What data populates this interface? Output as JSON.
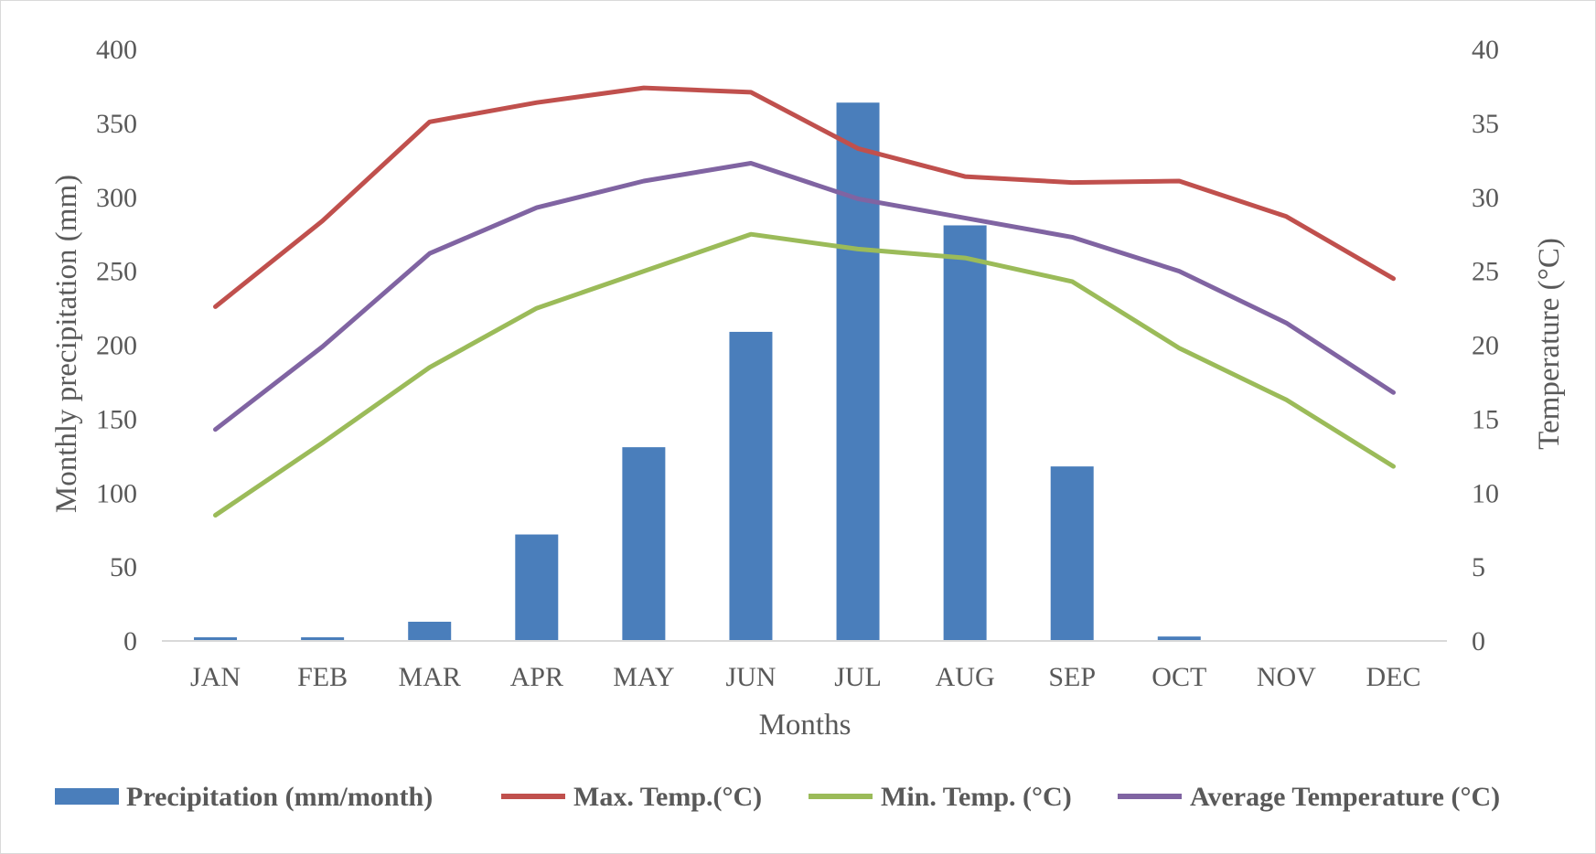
{
  "chart_data": {
    "type": "bar+line",
    "categories": [
      "JAN",
      "FEB",
      "MAR",
      "APR",
      "MAY",
      "JUN",
      "JUL",
      "AUG",
      "SEP",
      "OCT",
      "NOV",
      "DEC"
    ],
    "xlabel": "Months",
    "ylabel_left": "Monthly precipitation (mm)",
    "ylabel_right": "Temperature (°C)",
    "ylim_left": [
      0,
      400
    ],
    "ylim_right": [
      0,
      40
    ],
    "yticks_left": [
      "0",
      "50",
      "100",
      "150",
      "200",
      "250",
      "300",
      "350",
      "400"
    ],
    "yticks_right": [
      "0",
      "5",
      "10",
      "15",
      "20",
      "25",
      "30",
      "35",
      "40"
    ],
    "grid": false,
    "legend_position": "bottom",
    "bar_series": {
      "name": "Precipitation (mm/month)",
      "color": "#4a7ebb",
      "axis": "left",
      "values": [
        2.5,
        2.5,
        13,
        72,
        131,
        209,
        364,
        281,
        118,
        3,
        0,
        0
      ]
    },
    "line_series": [
      {
        "name": "Max. Temp.(°C)",
        "color": "#c0504d",
        "axis": "right",
        "values": [
          22.6,
          28.4,
          35.1,
          36.4,
          37.4,
          37.1,
          33.3,
          31.4,
          31.0,
          31.1,
          28.7,
          24.5
        ]
      },
      {
        "name": "Min. Temp. (°C)",
        "color": "#9bbb59",
        "axis": "right",
        "values": [
          8.5,
          13.4,
          18.5,
          22.5,
          25.0,
          27.5,
          26.5,
          25.9,
          24.3,
          19.8,
          16.3,
          11.8
        ]
      },
      {
        "name": "Average Temperature (°C)",
        "color": "#8064a2",
        "axis": "right",
        "values": [
          14.3,
          19.9,
          26.2,
          29.3,
          31.1,
          32.3,
          29.9,
          28.6,
          27.3,
          25.0,
          21.5,
          16.8
        ]
      }
    ]
  }
}
